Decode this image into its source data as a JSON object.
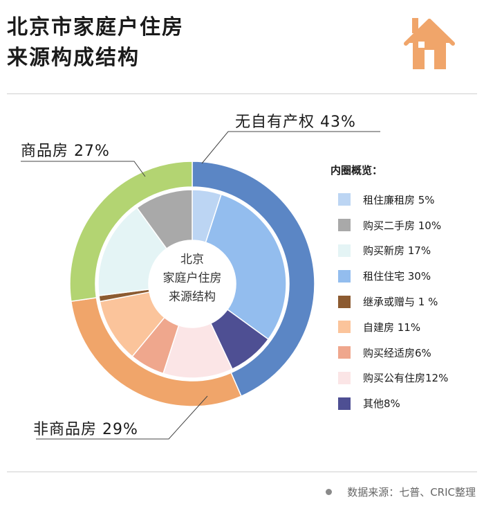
{
  "title": {
    "line1": "北京市家庭户住房",
    "line2": "来源构成结构"
  },
  "icon": "house-icon",
  "center_label": [
    "北京",
    "家庭户住房",
    "来源结构"
  ],
  "outer_labels": {
    "no_property": "无自有产权 43%",
    "commercial": "商品房 27%",
    "non_commercial": "非商品房 29%"
  },
  "legend": {
    "title": "内圈概览："
  },
  "source": "数据来源：七普、CRIC整理",
  "colors": {
    "accent": "#f0a56a",
    "outer_blue": "#5b86c5",
    "outer_green": "#b3d472",
    "outer_orange": "#f0a56a"
  },
  "chart_data": {
    "type": "pie",
    "title": "北京市家庭户住房来源构成结构",
    "style": "nested-donut",
    "outer_ring": [
      {
        "name": "无自有产权",
        "value": 43,
        "color": "#5b86c5"
      },
      {
        "name": "非商品房",
        "value": 29,
        "color": "#f0a56a"
      },
      {
        "name": "商品房",
        "value": 27,
        "color": "#b3d472"
      }
    ],
    "inner_ring": [
      {
        "name": "租住廉租房",
        "label": "租住廉租房 5%",
        "value": 5,
        "color": "#bcd5f3"
      },
      {
        "name": "租住住宅",
        "label": "租住住宅 30%",
        "value": 30,
        "color": "#93bdee"
      },
      {
        "name": "其他",
        "label": "其他8%",
        "value": 8,
        "color": "#4e4f93"
      },
      {
        "name": "购买公有住房",
        "label": "购买公有住房12%",
        "value": 12,
        "color": "#fbe5e6"
      },
      {
        "name": "购买经适房",
        "label": "购买经适房6%",
        "value": 6,
        "color": "#efa78d"
      },
      {
        "name": "自建房",
        "label": "自建房 11%",
        "value": 11,
        "color": "#fbc49b"
      },
      {
        "name": "继承或赠与",
        "label": "继承或赠与 1 %",
        "value": 1,
        "color": "#8c5b31"
      },
      {
        "name": "购买新房",
        "label": "购买新房 17%",
        "value": 17,
        "color": "#e4f4f5"
      },
      {
        "name": "购买二手房",
        "label": "购买二手房 10%",
        "value": 10,
        "color": "#a9a9a9"
      }
    ],
    "legend_order": [
      "租住廉租房",
      "购买二手房",
      "购买新房",
      "租住住宅",
      "继承或赠与",
      "自建房",
      "购买经适房",
      "购买公有住房",
      "其他"
    ],
    "legend_position": "right"
  }
}
